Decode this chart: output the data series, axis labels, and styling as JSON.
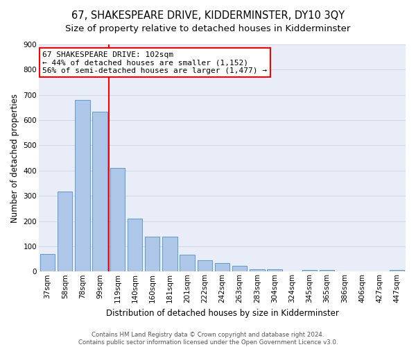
{
  "title": "67, SHAKESPEARE DRIVE, KIDDERMINSTER, DY10 3QY",
  "subtitle": "Size of property relative to detached houses in Kidderminster",
  "xlabel": "Distribution of detached houses by size in Kidderminster",
  "ylabel": "Number of detached properties",
  "footer1": "Contains HM Land Registry data © Crown copyright and database right 2024.",
  "footer2": "Contains public sector information licensed under the Open Government Licence v3.0.",
  "categories": [
    "37sqm",
    "58sqm",
    "78sqm",
    "99sqm",
    "119sqm",
    "140sqm",
    "160sqm",
    "181sqm",
    "201sqm",
    "222sqm",
    "242sqm",
    "263sqm",
    "283sqm",
    "304sqm",
    "324sqm",
    "345sqm",
    "365sqm",
    "386sqm",
    "406sqm",
    "427sqm",
    "447sqm"
  ],
  "values": [
    70,
    318,
    681,
    633,
    410,
    210,
    138,
    138,
    68,
    46,
    33,
    23,
    10,
    10,
    0,
    7,
    7,
    0,
    0,
    0,
    7
  ],
  "bar_color": "#aec6e8",
  "bar_edge_color": "#5b9bd5",
  "vline_x_index": 3,
  "vline_color": "red",
  "annotation_line1": "67 SHAKESPEARE DRIVE: 102sqm",
  "annotation_line2": "← 44% of detached houses are smaller (1,152)",
  "annotation_line3": "56% of semi-detached houses are larger (1,477) →",
  "annotation_box_color": "white",
  "annotation_box_edge": "red",
  "ylim": [
    0,
    900
  ],
  "yticks": [
    0,
    100,
    200,
    300,
    400,
    500,
    600,
    700,
    800,
    900
  ],
  "grid_color": "#d0d8e8",
  "bg_color": "#e8edf8",
  "title_fontsize": 10.5,
  "subtitle_fontsize": 9.5,
  "axis_label_fontsize": 8.5,
  "tick_fontsize": 7.5,
  "annotation_fontsize": 8
}
